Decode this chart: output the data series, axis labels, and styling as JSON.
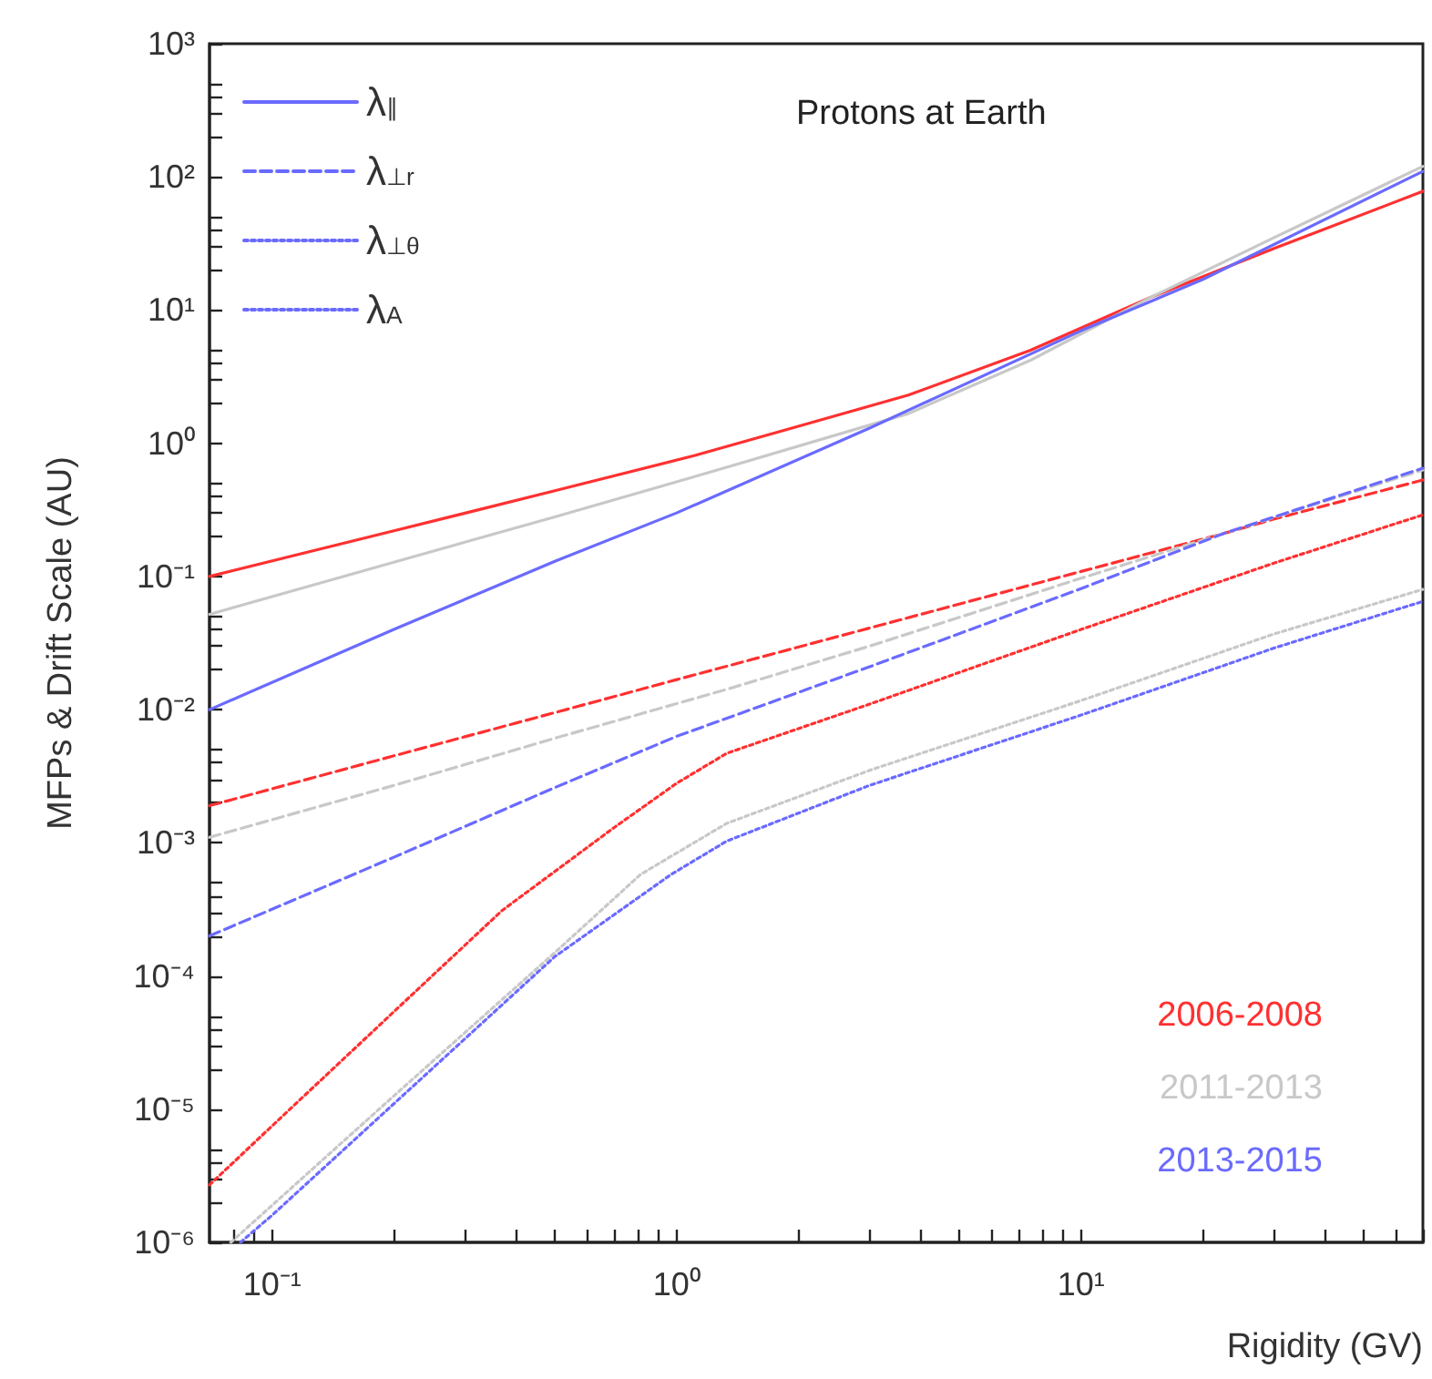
{
  "chart_data": {
    "type": "line",
    "title": "Protons at Earth",
    "xlabel": "Rigidity (GV)",
    "ylabel": "MFPs & Drift Scale (AU)",
    "log": "xy",
    "grid": false,
    "legend": "top left",
    "marker": "none",
    "xlim": [
      0.07,
      70
    ],
    "ylim": [
      1e-06,
      1000
    ],
    "xticks": [
      {
        "value": 0.08,
        "label": null
      },
      {
        "value": 0.09,
        "label": null
      },
      {
        "value": 0.1,
        "label": "10⁻¹"
      },
      {
        "value": 0.2,
        "label": null
      },
      {
        "value": 0.3,
        "label": null
      },
      {
        "value": 0.4,
        "label": null
      },
      {
        "value": 0.5,
        "label": null
      },
      {
        "value": 0.6,
        "label": null
      },
      {
        "value": 0.7,
        "label": null
      },
      {
        "value": 0.8,
        "label": null
      },
      {
        "value": 0.9,
        "label": null
      },
      {
        "value": 1,
        "label": "10⁰"
      },
      {
        "value": 2,
        "label": null
      },
      {
        "value": 3,
        "label": null
      },
      {
        "value": 4,
        "label": null
      },
      {
        "value": 5,
        "label": null
      },
      {
        "value": 6,
        "label": null
      },
      {
        "value": 7,
        "label": null
      },
      {
        "value": 8,
        "label": null
      },
      {
        "value": 9,
        "label": null
      },
      {
        "value": 10,
        "label": "10¹"
      },
      {
        "value": 20,
        "label": null
      },
      {
        "value": 30,
        "label": null
      },
      {
        "value": 40,
        "label": null
      },
      {
        "value": 50,
        "label": null
      },
      {
        "value": 60,
        "label": null
      },
      {
        "value": 70,
        "label": null
      }
    ],
    "yticks": [
      {
        "value": 1e-06,
        "label": "10⁻⁶"
      },
      {
        "value": 2e-06,
        "label": null
      },
      {
        "value": 3e-06,
        "label": null
      },
      {
        "value": 4e-06,
        "label": null
      },
      {
        "value": 5e-06,
        "label": null
      },
      {
        "value": 1e-05,
        "label": "10⁻⁵"
      },
      {
        "value": 2e-05,
        "label": null
      },
      {
        "value": 3e-05,
        "label": null
      },
      {
        "value": 4e-05,
        "label": null
      },
      {
        "value": 5e-05,
        "label": null
      },
      {
        "value": 0.0001,
        "label": "10⁻⁴"
      },
      {
        "value": 0.0002,
        "label": null
      },
      {
        "value": 0.0003,
        "label": null
      },
      {
        "value": 0.0004,
        "label": null
      },
      {
        "value": 0.0005,
        "label": null
      },
      {
        "value": 0.001,
        "label": "10⁻³"
      },
      {
        "value": 0.002,
        "label": null
      },
      {
        "value": 0.003,
        "label": null
      },
      {
        "value": 0.004,
        "label": null
      },
      {
        "value": 0.005,
        "label": null
      },
      {
        "value": 0.01,
        "label": "10⁻²"
      },
      {
        "value": 0.02,
        "label": null
      },
      {
        "value": 0.03,
        "label": null
      },
      {
        "value": 0.04,
        "label": null
      },
      {
        "value": 0.05,
        "label": null
      },
      {
        "value": 0.1,
        "label": "10⁻¹"
      },
      {
        "value": 0.2,
        "label": null
      },
      {
        "value": 0.3,
        "label": null
      },
      {
        "value": 0.4,
        "label": null
      },
      {
        "value": 0.5,
        "label": null
      },
      {
        "value": 1,
        "label": "10⁰"
      },
      {
        "value": 2,
        "label": null
      },
      {
        "value": 3,
        "label": null
      },
      {
        "value": 4,
        "label": null
      },
      {
        "value": 5,
        "label": null
      },
      {
        "value": 10,
        "label": "10¹"
      },
      {
        "value": 20,
        "label": null
      },
      {
        "value": 30,
        "label": null
      },
      {
        "value": 40,
        "label": null
      },
      {
        "value": 50,
        "label": null
      },
      {
        "value": 100,
        "label": "10²"
      },
      {
        "value": 200,
        "label": null
      },
      {
        "value": 300,
        "label": null
      },
      {
        "value": 400,
        "label": null
      },
      {
        "value": 500,
        "label": null
      },
      {
        "value": 1000,
        "label": "10³"
      }
    ],
    "annotations": [
      "2006-2008",
      "2011-2013",
      "2013-2015"
    ],
    "series": [
      {
        "color": "#ff3030",
        "line_style": "solid",
        "x": [
          0.07,
          0.2,
          0.5,
          1.11,
          2,
          3.74,
          7.5,
          14.9,
          30,
          70
        ],
        "values": [
          0.1,
          0.22,
          0.44,
          0.81,
          1.34,
          2.3,
          5,
          12.5,
          29,
          78
        ]
      },
      {
        "color": "#c8c8c8",
        "line_style": "solid",
        "x": [
          0.07,
          0.2,
          0.5,
          1.33,
          3.74,
          7.5,
          14.9,
          30,
          70
        ],
        "values": [
          0.052,
          0.128,
          0.28,
          0.66,
          1.67,
          4.2,
          12.5,
          35,
          120
        ]
      },
      {
        "name": "λ$_{∥}$",
        "color": "#6a6aff",
        "line_style": "solid",
        "x": [
          0.07,
          0.2,
          0.5,
          1,
          3,
          10,
          20,
          70
        ],
        "values": [
          0.01,
          0.04,
          0.13,
          0.3,
          1.3,
          7,
          17,
          110
        ]
      },
      {
        "color": "#ff3030",
        "line_style": "dashed",
        "x": [
          0.07,
          0.2,
          0.5,
          1,
          3,
          10,
          22.5,
          30,
          70
        ],
        "values": [
          0.0019,
          0.0045,
          0.0095,
          0.0168,
          0.041,
          0.109,
          0.21,
          0.27,
          0.53
        ]
      },
      {
        "color": "#c8c8c8",
        "line_style": "dashed",
        "x": [
          0.07,
          0.2,
          0.5,
          1,
          1.33,
          3,
          10,
          22.5,
          70
        ],
        "values": [
          0.0011,
          0.0027,
          0.0061,
          0.0111,
          0.0142,
          0.03,
          0.097,
          0.21,
          0.63
        ]
      },
      {
        "name": "λ$_{⊥r}$",
        "color": "#6a6aff",
        "line_style": "dashed",
        "x": [
          0.07,
          0.2,
          0.5,
          1,
          3,
          10,
          22.5,
          70
        ],
        "values": [
          0.0002,
          0.00078,
          0.0026,
          0.0063,
          0.021,
          0.081,
          0.21,
          0.65
        ]
      },
      {
        "name": "λ$_{⊥θ}$",
        "color": "#6a6aff",
        "line_style": "dotted"
      },
      {
        "color": "#ff3030",
        "line_style": "dotted",
        "x": [
          0.07,
          0.1,
          0.2,
          0.37,
          0.7,
          1,
          1.33,
          3,
          10,
          30,
          70
        ],
        "values": [
          2.7e-06,
          7.5e-06,
          5.4e-05,
          0.00031,
          0.0013,
          0.0028,
          0.0047,
          0.011,
          0.04,
          0.126,
          0.29
        ]
      },
      {
        "color": "#c8c8c8",
        "line_style": "dotted",
        "x": [
          0.079,
          0.1,
          0.2,
          0.5,
          0.815,
          1.33,
          3,
          10,
          30,
          70
        ],
        "values": [
          1e-06,
          1.9e-06,
          1.26e-05,
          0.00015,
          0.00058,
          0.0014,
          0.0035,
          0.0117,
          0.037,
          0.08
        ]
      },
      {
        "name": "λ$_{A}$",
        "color": "#6a6aff",
        "line_style": "dotted",
        "x": [
          0.0835,
          0.1,
          0.2,
          0.5,
          0.97,
          1.33,
          3,
          10,
          30,
          70
        ],
        "values": [
          1e-06,
          1.6e-06,
          1.1e-05,
          0.00014,
          0.00058,
          0.00103,
          0.0027,
          0.0091,
          0.029,
          0.065
        ]
      }
    ]
  }
}
